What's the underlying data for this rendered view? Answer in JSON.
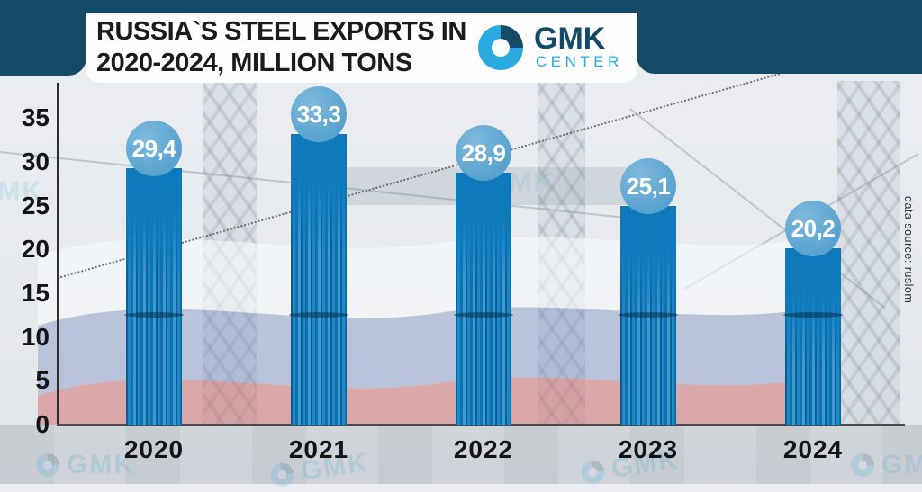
{
  "header": {
    "title_line1": "RUSSIA`S STEEL EXPORTS IN",
    "title_line2": "2020-2024, MILLION TONS",
    "logo": {
      "name": "GMK",
      "subtitle": "CENTER"
    }
  },
  "chart_data": {
    "type": "bar",
    "title": "Russia`s steel exports in 2020-2024, million tons",
    "categories": [
      "2020",
      "2021",
      "2022",
      "2023",
      "2024"
    ],
    "values": [
      29.4,
      33.3,
      28.9,
      25.1,
      20.2
    ],
    "value_labels": [
      "29,4",
      "33,3",
      "28,9",
      "25,1",
      "20,2"
    ],
    "xlabel": "",
    "ylabel": "",
    "ylim": [
      0,
      35
    ],
    "yticks": [
      0,
      5,
      10,
      15,
      20,
      25,
      30,
      35
    ],
    "grid": false,
    "legend_position": "none",
    "bar_color": "#0e7abc",
    "bubble_color": "#5aa3d0"
  },
  "source_note": "data source: ruslom",
  "watermark": {
    "text": "GMK"
  },
  "colors": {
    "navy": "#134a66",
    "logo_cyan": "#29a9e0",
    "bar_blue": "#0e7abc",
    "bubble_blue": "#5aa3d0",
    "background": "#e8ebee",
    "title_text": "#1b1b1b"
  }
}
